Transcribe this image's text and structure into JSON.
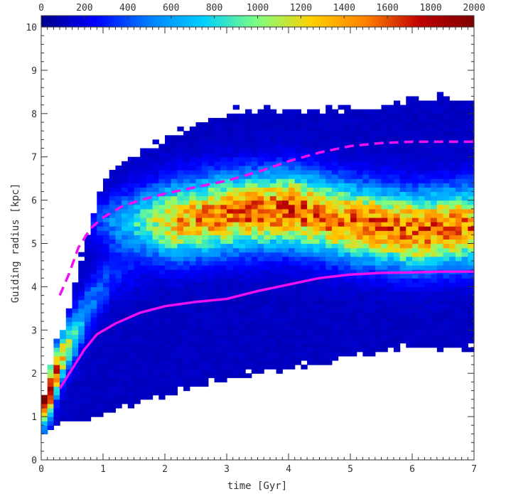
{
  "chart_data": {
    "type": "heatmap",
    "xlabel": "time [Gyr]",
    "ylabel": "Guiding radius [kpc]",
    "xlim": [
      0,
      7
    ],
    "ylim": [
      0,
      10
    ],
    "x_ticks": [
      "0",
      "1",
      "2",
      "3",
      "4",
      "5",
      "6",
      "7"
    ],
    "y_ticks": [
      "0",
      "1",
      "2",
      "3",
      "4",
      "5",
      "6",
      "7",
      "8",
      "9",
      "10"
    ],
    "colorbar": {
      "range": [
        0,
        2000
      ],
      "ticks": [
        "0",
        "200",
        "400",
        "600",
        "800",
        "1000",
        "1200",
        "1400",
        "1600",
        "1800",
        "2000"
      ],
      "colors": [
        "#00008b",
        "#0000ff",
        "#0080ff",
        "#00d0ff",
        "#7fff7f",
        "#ffd000",
        "#ff8000",
        "#c00000",
        "#800000"
      ]
    },
    "grid": false,
    "mean_line": {
      "color": "#ee10ee",
      "x": [
        0.3,
        0.5,
        0.7,
        0.9,
        1.2,
        1.6,
        2.0,
        2.5,
        3.0,
        3.5,
        4.0,
        4.5,
        5.0,
        5.5,
        6.0,
        6.5,
        7.0
      ],
      "y": [
        1.65,
        2.1,
        2.55,
        2.9,
        3.15,
        3.4,
        3.55,
        3.65,
        3.72,
        3.9,
        4.05,
        4.2,
        4.28,
        4.32,
        4.33,
        4.35,
        4.35
      ]
    },
    "upper_line": {
      "color": "#ee10ee",
      "style": "dashed",
      "x": [
        0.3,
        0.45,
        0.6,
        0.8,
        1.0,
        1.3,
        1.6,
        2.0,
        2.5,
        3.0,
        3.5,
        4.0,
        4.5,
        5.0,
        5.5,
        6.0,
        6.5,
        7.0
      ],
      "y": [
        3.8,
        4.3,
        4.9,
        5.35,
        5.6,
        5.85,
        6.0,
        6.15,
        6.3,
        6.45,
        6.65,
        6.9,
        7.1,
        7.25,
        7.32,
        7.35,
        7.35,
        7.35
      ]
    },
    "density_model": {
      "t_step": 0.1,
      "r_step": 0.1,
      "inner_ridge": [
        [
          0.1,
          1.4,
          2000
        ],
        [
          0.3,
          2.3,
          1500
        ],
        [
          0.5,
          2.8,
          1100
        ],
        [
          0.8,
          3.6,
          700
        ],
        [
          1.2,
          4.4,
          600
        ]
      ],
      "main_ridge": [
        [
          2.0,
          5.5,
          1200
        ],
        [
          3.0,
          5.7,
          1400
        ],
        [
          4.0,
          5.8,
          1450
        ],
        [
          5.0,
          5.5,
          1400
        ],
        [
          6.0,
          5.3,
          1450
        ],
        [
          7.0,
          5.4,
          1350
        ]
      ],
      "lower_edge": [
        [
          0.0,
          0.5
        ],
        [
          0.3,
          0.8
        ],
        [
          0.7,
          0.9
        ],
        [
          1.0,
          1.1
        ],
        [
          1.5,
          1.3
        ],
        [
          2.0,
          1.5
        ],
        [
          2.5,
          1.7
        ],
        [
          3.0,
          1.9
        ],
        [
          3.5,
          2.0
        ],
        [
          4.0,
          2.1
        ],
        [
          5.0,
          2.4
        ],
        [
          6.0,
          2.6
        ],
        [
          7.0,
          2.6
        ]
      ],
      "upper_edge": [
        [
          0.0,
          1.0
        ],
        [
          0.2,
          2.7
        ],
        [
          0.4,
          3.2
        ],
        [
          0.6,
          4.5
        ],
        [
          0.8,
          5.5
        ],
        [
          1.0,
          6.4
        ],
        [
          1.3,
          6.9
        ],
        [
          1.7,
          7.2
        ],
        [
          2.2,
          7.6
        ],
        [
          2.8,
          7.9
        ],
        [
          3.3,
          8.1
        ],
        [
          4.0,
          8.05
        ],
        [
          5.0,
          8.1
        ],
        [
          6.0,
          8.3
        ],
        [
          7.0,
          8.4
        ]
      ]
    }
  }
}
